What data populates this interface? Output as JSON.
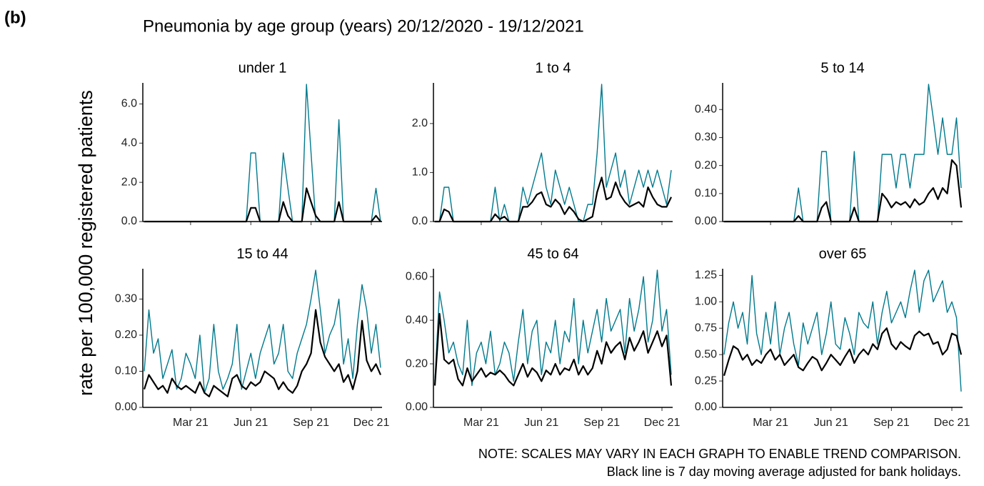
{
  "chart_data": {
    "type": "facet-line",
    "panel_label": "(b)",
    "title": "Pneumonia by age group (years) 20/12/2020 - 19/12/2021",
    "y_label": "rate per 100,000 registered patients",
    "notes": [
      "NOTE: SCALES MAY VARY IN EACH GRAPH TO ENABLE TREND COMPARISON.",
      "Black line is 7 day moving average adjusted for bank holidays."
    ],
    "categories": [
      null,
      null,
      null,
      null,
      null,
      null,
      null,
      null,
      null,
      null,
      "Mar 21",
      null,
      null,
      null,
      null,
      null,
      null,
      null,
      null,
      null,
      null,
      null,
      null,
      "Jun 21",
      null,
      null,
      null,
      null,
      null,
      null,
      null,
      null,
      null,
      null,
      null,
      null,
      "Sep 21",
      null,
      null,
      null,
      null,
      null,
      null,
      null,
      null,
      null,
      null,
      null,
      null,
      "Dec 21",
      null,
      null
    ],
    "panels": [
      {
        "title": "under 1",
        "ylim": [
          0,
          7
        ],
        "yticks": [
          {
            "value": 0,
            "label": "0.0"
          },
          {
            "value": 2,
            "label": "2.0"
          },
          {
            "value": 4,
            "label": "4.0"
          },
          {
            "value": 6,
            "label": "6.0"
          }
        ],
        "series": [
          {
            "color": "#00798c",
            "values": [
              0,
              0,
              0,
              0,
              0,
              0,
              0,
              0,
              0,
              0,
              0,
              0,
              0,
              0,
              0,
              0,
              0,
              0,
              0,
              0,
              0,
              0,
              0,
              3.5,
              3.5,
              0,
              0,
              0,
              0,
              0,
              3.5,
              1.7,
              0,
              0,
              0,
              7.0,
              3.5,
              0,
              0,
              0,
              0,
              0,
              5.2,
              0,
              0,
              0,
              0,
              0,
              0,
              0,
              1.7,
              0
            ]
          },
          {
            "color": "#000000",
            "values": [
              0,
              0,
              0,
              0,
              0,
              0,
              0,
              0,
              0,
              0,
              0,
              0,
              0,
              0,
              0,
              0,
              0,
              0,
              0,
              0,
              0,
              0,
              0,
              0.7,
              0.7,
              0,
              0,
              0,
              0,
              0,
              1.0,
              0.3,
              0,
              0,
              0,
              1.7,
              1.0,
              0.3,
              0,
              0,
              0,
              0,
              1.0,
              0,
              0,
              0,
              0,
              0,
              0,
              0,
              0.3,
              0
            ]
          }
        ]
      },
      {
        "title": "1 to 4",
        "ylim": [
          0,
          2.8
        ],
        "yticks": [
          {
            "value": 0,
            "label": "0.0"
          },
          {
            "value": 1,
            "label": "1.0"
          },
          {
            "value": 2,
            "label": "2.0"
          }
        ],
        "series": [
          {
            "color": "#00798c",
            "values": [
              0,
              0,
              0.7,
              0.7,
              0,
              0,
              0,
              0,
              0,
              0,
              0,
              0,
              0,
              0.7,
              0,
              0.35,
              0,
              0,
              0,
              0.7,
              0.35,
              0.7,
              1.05,
              1.4,
              0.7,
              0.35,
              1.05,
              0.7,
              0.35,
              0.7,
              0.35,
              0,
              0,
              0.35,
              0.35,
              1.4,
              2.8,
              0.7,
              1.05,
              1.4,
              0.7,
              1.05,
              0.35,
              0.7,
              1.05,
              0.7,
              1.05,
              0.7,
              1.05,
              0.7,
              0.35,
              1.05
            ]
          },
          {
            "color": "#000000",
            "values": [
              0,
              0,
              0.25,
              0.2,
              0,
              0,
              0,
              0,
              0,
              0,
              0,
              0,
              0,
              0.15,
              0.05,
              0.1,
              0,
              0,
              0,
              0.3,
              0.3,
              0.4,
              0.55,
              0.6,
              0.35,
              0.3,
              0.45,
              0.35,
              0.15,
              0.3,
              0.2,
              0.05,
              0,
              0.05,
              0.1,
              0.6,
              0.9,
              0.45,
              0.5,
              0.8,
              0.55,
              0.4,
              0.3,
              0.35,
              0.4,
              0.3,
              0.7,
              0.5,
              0.35,
              0.3,
              0.3,
              0.5
            ]
          }
        ]
      },
      {
        "title": "5 to 14",
        "ylim": [
          0,
          0.49
        ],
        "yticks": [
          {
            "value": 0,
            "label": "0.00"
          },
          {
            "value": 0.1,
            "label": "0.10"
          },
          {
            "value": 0.2,
            "label": "0.20"
          },
          {
            "value": 0.3,
            "label": "0.30"
          },
          {
            "value": 0.4,
            "label": "0.40"
          }
        ],
        "series": [
          {
            "color": "#00798c",
            "values": [
              0,
              0,
              0,
              0,
              0,
              0,
              0,
              0,
              0,
              0,
              0,
              0,
              0,
              0,
              0,
              0,
              0.12,
              0,
              0,
              0,
              0,
              0.25,
              0.25,
              0,
              0,
              0,
              0,
              0,
              0.25,
              0,
              0,
              0,
              0,
              0,
              0.24,
              0.24,
              0.24,
              0.12,
              0.24,
              0.24,
              0.12,
              0.24,
              0.24,
              0.24,
              0.49,
              0.37,
              0.24,
              0.37,
              0.24,
              0.24,
              0.37,
              0.12
            ]
          },
          {
            "color": "#000000",
            "values": [
              0,
              0,
              0,
              0,
              0,
              0,
              0,
              0,
              0,
              0,
              0,
              0,
              0,
              0,
              0,
              0,
              0.02,
              0,
              0,
              0,
              0,
              0.05,
              0.07,
              0,
              0,
              0,
              0,
              0,
              0.05,
              0,
              0,
              0,
              0,
              0,
              0.1,
              0.08,
              0.05,
              0.07,
              0.06,
              0.07,
              0.05,
              0.08,
              0.06,
              0.07,
              0.1,
              0.12,
              0.08,
              0.12,
              0.1,
              0.22,
              0.2,
              0.05
            ]
          }
        ]
      },
      {
        "title": "15 to 44",
        "ylim": [
          0,
          0.38
        ],
        "yticks": [
          {
            "value": 0,
            "label": "0.00"
          },
          {
            "value": 0.1,
            "label": "0.10"
          },
          {
            "value": 0.2,
            "label": "0.20"
          },
          {
            "value": 0.3,
            "label": "0.30"
          }
        ],
        "series": [
          {
            "color": "#00798c",
            "values": [
              0.1,
              0.27,
              0.15,
              0.19,
              0.08,
              0.12,
              0.16,
              0.05,
              0.08,
              0.15,
              0.12,
              0.08,
              0.2,
              0.04,
              0.08,
              0.23,
              0.1,
              0.05,
              0.08,
              0.12,
              0.23,
              0.05,
              0.1,
              0.15,
              0.08,
              0.15,
              0.19,
              0.23,
              0.12,
              0.15,
              0.23,
              0.1,
              0.08,
              0.15,
              0.19,
              0.23,
              0.3,
              0.38,
              0.27,
              0.15,
              0.2,
              0.23,
              0.3,
              0.12,
              0.19,
              0.08,
              0.23,
              0.34,
              0.27,
              0.15,
              0.23,
              0.11
            ]
          },
          {
            "color": "#000000",
            "values": [
              0.05,
              0.09,
              0.07,
              0.05,
              0.06,
              0.04,
              0.08,
              0.06,
              0.05,
              0.06,
              0.05,
              0.04,
              0.07,
              0.04,
              0.03,
              0.06,
              0.05,
              0.04,
              0.03,
              0.08,
              0.09,
              0.06,
              0.05,
              0.07,
              0.06,
              0.07,
              0.1,
              0.09,
              0.08,
              0.05,
              0.07,
              0.05,
              0.04,
              0.06,
              0.1,
              0.12,
              0.15,
              0.27,
              0.18,
              0.14,
              0.12,
              0.1,
              0.12,
              0.07,
              0.09,
              0.05,
              0.1,
              0.24,
              0.13,
              0.1,
              0.12,
              0.09
            ]
          }
        ]
      },
      {
        "title": "45 to 64",
        "ylim": [
          0,
          0.63
        ],
        "yticks": [
          {
            "value": 0,
            "label": "0.00"
          },
          {
            "value": 0.2,
            "label": "0.20"
          },
          {
            "value": 0.4,
            "label": "0.40"
          },
          {
            "value": 0.6,
            "label": "0.60"
          }
        ],
        "series": [
          {
            "color": "#00798c",
            "values": [
              0.12,
              0.53,
              0.4,
              0.25,
              0.3,
              0.2,
              0.15,
              0.4,
              0.1,
              0.25,
              0.3,
              0.2,
              0.35,
              0.15,
              0.2,
              0.3,
              0.25,
              0.12,
              0.3,
              0.45,
              0.2,
              0.35,
              0.4,
              0.15,
              0.3,
              0.25,
              0.4,
              0.2,
              0.35,
              0.3,
              0.5,
              0.2,
              0.4,
              0.25,
              0.35,
              0.45,
              0.3,
              0.5,
              0.35,
              0.4,
              0.45,
              0.25,
              0.5,
              0.35,
              0.45,
              0.6,
              0.3,
              0.4,
              0.63,
              0.35,
              0.45,
              0.15
            ]
          },
          {
            "color": "#000000",
            "values": [
              0.1,
              0.43,
              0.22,
              0.2,
              0.22,
              0.13,
              0.1,
              0.18,
              0.12,
              0.15,
              0.18,
              0.14,
              0.16,
              0.15,
              0.17,
              0.15,
              0.12,
              0.1,
              0.15,
              0.2,
              0.14,
              0.18,
              0.16,
              0.12,
              0.17,
              0.15,
              0.2,
              0.15,
              0.18,
              0.17,
              0.22,
              0.15,
              0.19,
              0.15,
              0.18,
              0.26,
              0.2,
              0.3,
              0.25,
              0.28,
              0.3,
              0.22,
              0.32,
              0.26,
              0.3,
              0.35,
              0.25,
              0.3,
              0.35,
              0.28,
              0.33,
              0.1
            ]
          }
        ]
      },
      {
        "title": "over 65",
        "ylim": [
          0,
          1.3
        ],
        "yticks": [
          {
            "value": 0,
            "label": "0.00"
          },
          {
            "value": 0.25,
            "label": "0.25"
          },
          {
            "value": 0.5,
            "label": "0.50"
          },
          {
            "value": 0.75,
            "label": "0.75"
          },
          {
            "value": 1,
            "label": "1.00"
          },
          {
            "value": 1.25,
            "label": "1.25"
          }
        ],
        "series": [
          {
            "color": "#00798c",
            "values": [
              0.5,
              0.8,
              1.0,
              0.75,
              0.9,
              0.6,
              1.25,
              0.7,
              0.5,
              0.9,
              0.6,
              1.0,
              0.5,
              0.75,
              0.9,
              0.6,
              0.4,
              0.8,
              0.6,
              0.75,
              0.9,
              0.5,
              0.7,
              1.0,
              0.6,
              0.55,
              0.85,
              0.7,
              0.5,
              0.9,
              0.8,
              0.75,
              1.0,
              0.6,
              0.9,
              1.1,
              0.8,
              0.9,
              1.0,
              0.85,
              1.1,
              1.3,
              0.9,
              1.2,
              1.3,
              1.0,
              1.1,
              1.2,
              0.9,
              1.0,
              0.85,
              0.15
            ]
          },
          {
            "color": "#000000",
            "values": [
              0.3,
              0.45,
              0.58,
              0.55,
              0.45,
              0.5,
              0.4,
              0.45,
              0.42,
              0.5,
              0.55,
              0.45,
              0.5,
              0.4,
              0.45,
              0.5,
              0.38,
              0.35,
              0.42,
              0.48,
              0.45,
              0.35,
              0.42,
              0.5,
              0.45,
              0.4,
              0.48,
              0.55,
              0.42,
              0.5,
              0.55,
              0.5,
              0.6,
              0.55,
              0.7,
              0.75,
              0.6,
              0.55,
              0.62,
              0.58,
              0.55,
              0.68,
              0.72,
              0.68,
              0.7,
              0.6,
              0.62,
              0.5,
              0.55,
              0.7,
              0.68,
              0.5
            ]
          }
        ]
      }
    ]
  }
}
